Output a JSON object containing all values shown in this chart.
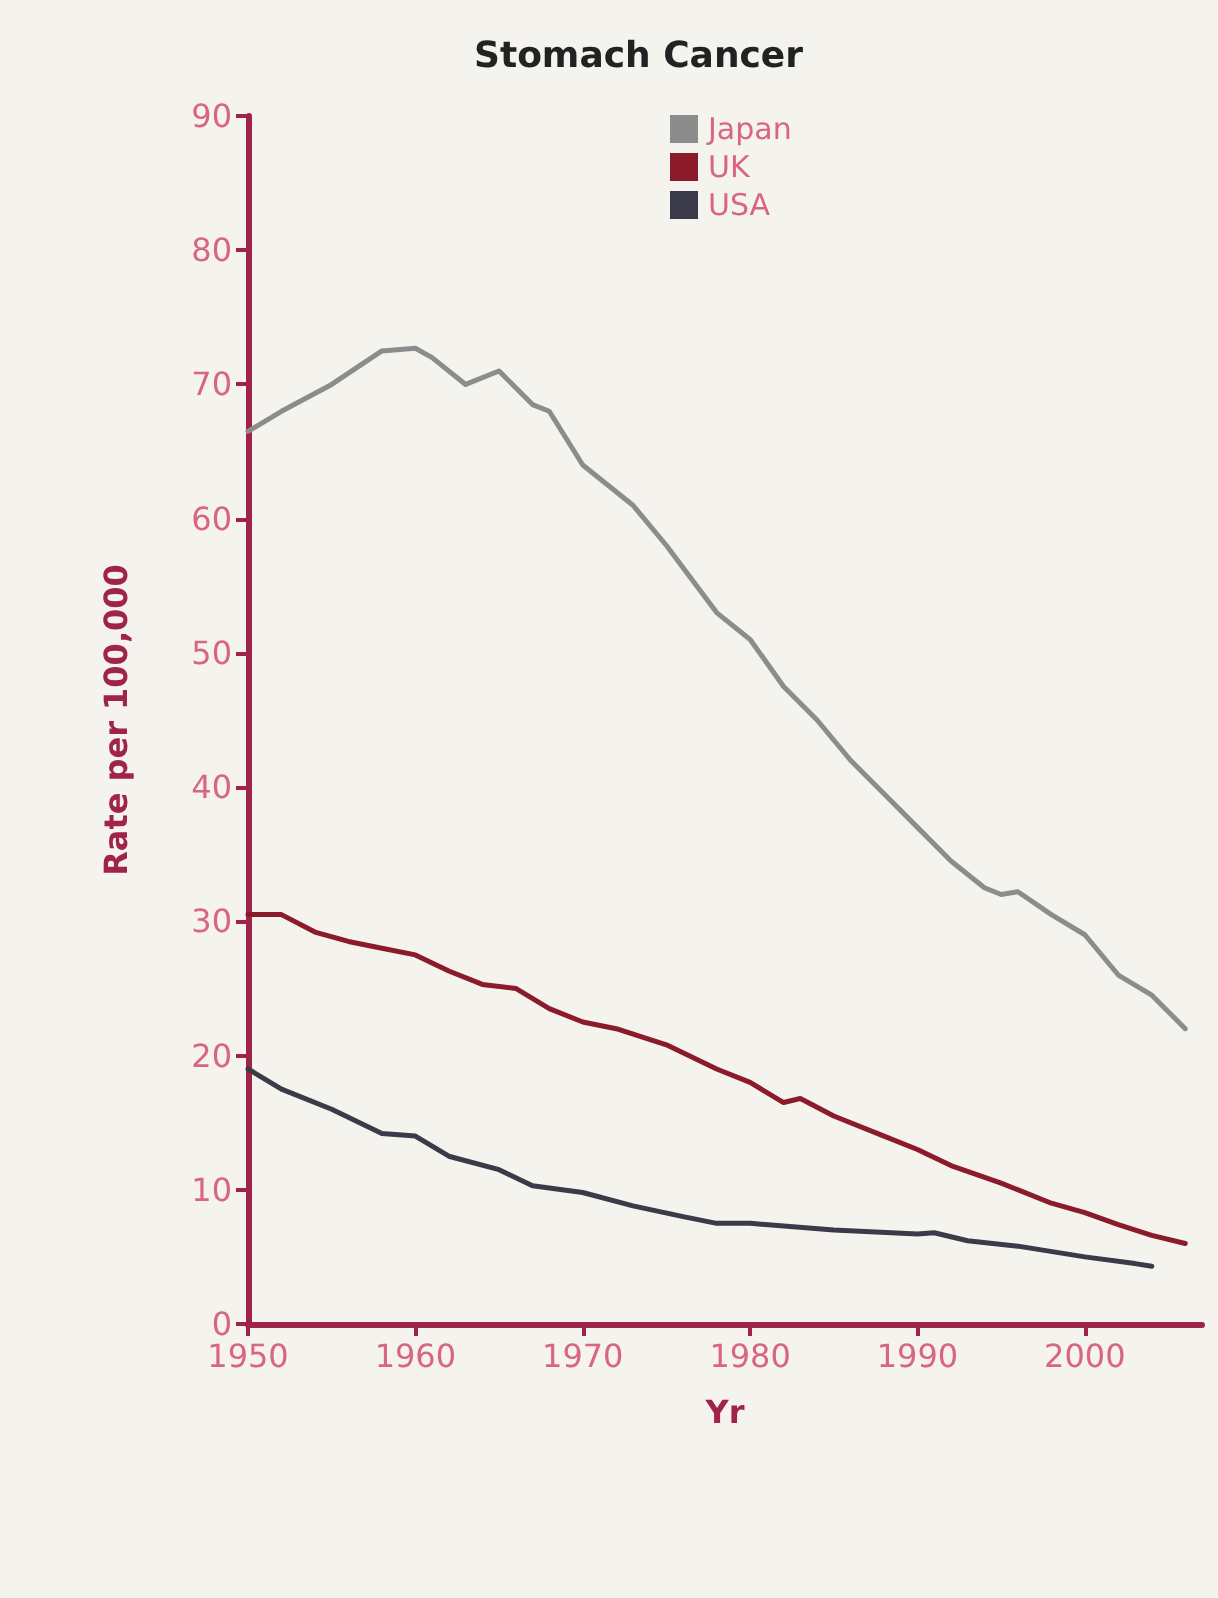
{
  "chart_data": {
    "type": "line",
    "title": "Stomach Cancer",
    "xlabel": "Yr",
    "ylabel": "Rate per 100,000",
    "xlim": [
      1950,
      2007
    ],
    "xticks": [
      1950,
      1960,
      1970,
      1980,
      1990,
      2000
    ],
    "ylim": [
      0,
      90
    ],
    "yticks": [
      0,
      10,
      20,
      30,
      40,
      50,
      60,
      70,
      80,
      90
    ],
    "grid": false,
    "legend": "top",
    "marker": "none",
    "line_style": "solid",
    "series": [
      {
        "name": "Japan",
        "color": "#8c8c8c",
        "x": [
          1950,
          1952,
          1955,
          1958,
          1960,
          1961,
          1963,
          1965,
          1967,
          1968,
          1970,
          1973,
          1975,
          1978,
          1980,
          1982,
          1984,
          1986,
          1988,
          1990,
          1992,
          1994,
          1995,
          1996,
          1998,
          2000,
          2002,
          2004,
          2006
        ],
        "values": [
          66.5,
          68,
          70,
          72.5,
          72.7,
          72,
          70,
          71,
          68.5,
          68,
          64,
          61,
          58,
          53,
          51,
          47.5,
          45,
          42,
          39.5,
          37,
          34.5,
          32.5,
          32,
          32.2,
          30.5,
          29,
          26,
          24.5,
          22
        ]
      },
      {
        "name": "UK",
        "color": "#8b1a2b",
        "x": [
          1950,
          1952,
          1954,
          1956,
          1958,
          1960,
          1962,
          1964,
          1966,
          1968,
          1970,
          1972,
          1975,
          1978,
          1980,
          1982,
          1983,
          1985,
          1988,
          1990,
          1992,
          1995,
          1998,
          2000,
          2002,
          2004,
          2006
        ],
        "values": [
          30.5,
          30.5,
          29.2,
          28.5,
          28,
          27.5,
          26.3,
          25.3,
          25,
          23.5,
          22.5,
          22,
          20.8,
          19,
          18,
          16.5,
          16.8,
          15.5,
          14,
          13,
          11.8,
          10.5,
          9,
          8.3,
          7.4,
          6.6,
          6
        ]
      },
      {
        "name": "USA",
        "color": "#3a3a48",
        "x": [
          1950,
          1952,
          1955,
          1958,
          1960,
          1962,
          1965,
          1967,
          1970,
          1973,
          1976,
          1978,
          1980,
          1985,
          1990,
          1991,
          1993,
          1996,
          2000,
          2003,
          2004
        ],
        "values": [
          19,
          17.5,
          16,
          14.2,
          14,
          12.5,
          11.5,
          10.3,
          9.8,
          8.8,
          8,
          7.5,
          7.5,
          7,
          6.7,
          6.8,
          6.2,
          5.8,
          5,
          4.5,
          4.3
        ]
      }
    ]
  }
}
